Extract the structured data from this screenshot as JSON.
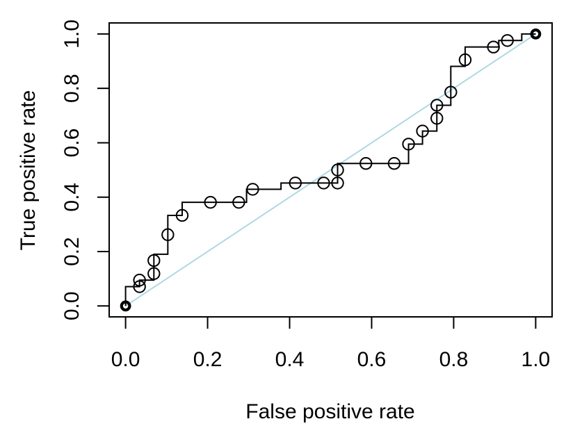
{
  "figure": {
    "background": "#ffffff",
    "frame_color": "#000000"
  },
  "chart_data": {
    "type": "line",
    "subtype": "roc-step-curve",
    "title": "",
    "xlabel": "False positive rate",
    "ylabel": "True positive rate",
    "xlim": [
      0.0,
      1.0
    ],
    "ylim": [
      0.0,
      1.0
    ],
    "x_tick_labels": [
      "0.0",
      "0.2",
      "0.4",
      "0.6",
      "0.8",
      "1.0"
    ],
    "y_tick_labels": [
      "0.0",
      "0.2",
      "0.4",
      "0.6",
      "0.8",
      "1.0"
    ],
    "grid": false,
    "legend_position": "none",
    "series": [
      {
        "name": "roc-curve",
        "type": "step",
        "color": "#000000",
        "line_width": 2,
        "curve_vertices": [
          [
            0.0,
            0.0
          ],
          [
            0.0,
            0.071
          ],
          [
            0.034,
            0.071
          ],
          [
            0.034,
            0.095
          ],
          [
            0.069,
            0.095
          ],
          [
            0.069,
            0.19
          ],
          [
            0.103,
            0.19
          ],
          [
            0.103,
            0.333
          ],
          [
            0.138,
            0.333
          ],
          [
            0.138,
            0.381
          ],
          [
            0.295,
            0.381
          ],
          [
            0.295,
            0.429
          ],
          [
            0.379,
            0.429
          ],
          [
            0.379,
            0.452
          ],
          [
            0.517,
            0.452
          ],
          [
            0.517,
            0.524
          ],
          [
            0.69,
            0.524
          ],
          [
            0.69,
            0.595
          ],
          [
            0.724,
            0.595
          ],
          [
            0.724,
            0.643
          ],
          [
            0.759,
            0.643
          ],
          [
            0.759,
            0.738
          ],
          [
            0.793,
            0.738
          ],
          [
            0.793,
            0.881
          ],
          [
            0.828,
            0.881
          ],
          [
            0.828,
            0.952
          ],
          [
            0.91,
            0.952
          ],
          [
            0.91,
            0.976
          ],
          [
            0.966,
            0.976
          ],
          [
            0.966,
            1.0
          ],
          [
            1.0,
            1.0
          ]
        ],
        "marker_style": "open-circle",
        "markers": [
          [
            0.034,
            0.071
          ],
          [
            0.034,
            0.095
          ],
          [
            0.069,
            0.119
          ],
          [
            0.069,
            0.167
          ],
          [
            0.103,
            0.262
          ],
          [
            0.138,
            0.333
          ],
          [
            0.207,
            0.381
          ],
          [
            0.276,
            0.381
          ],
          [
            0.31,
            0.429
          ],
          [
            0.414,
            0.452
          ],
          [
            0.483,
            0.452
          ],
          [
            0.517,
            0.452
          ],
          [
            0.517,
            0.5
          ],
          [
            0.586,
            0.524
          ],
          [
            0.655,
            0.524
          ],
          [
            0.69,
            0.595
          ],
          [
            0.724,
            0.643
          ],
          [
            0.759,
            0.69
          ],
          [
            0.759,
            0.738
          ],
          [
            0.793,
            0.786
          ],
          [
            0.828,
            0.905
          ],
          [
            0.897,
            0.952
          ],
          [
            0.931,
            0.976
          ]
        ],
        "endpoint_markers": [
          [
            0.0,
            0.0
          ],
          [
            1.0,
            1.0
          ]
        ],
        "endpoint_marker_style": "bold-open-circle"
      },
      {
        "name": "chance-diagonal",
        "type": "line",
        "color": "#ADD8E6",
        "line_width": 2,
        "points": [
          [
            0.0,
            0.0
          ],
          [
            1.0,
            1.0
          ]
        ]
      }
    ]
  }
}
